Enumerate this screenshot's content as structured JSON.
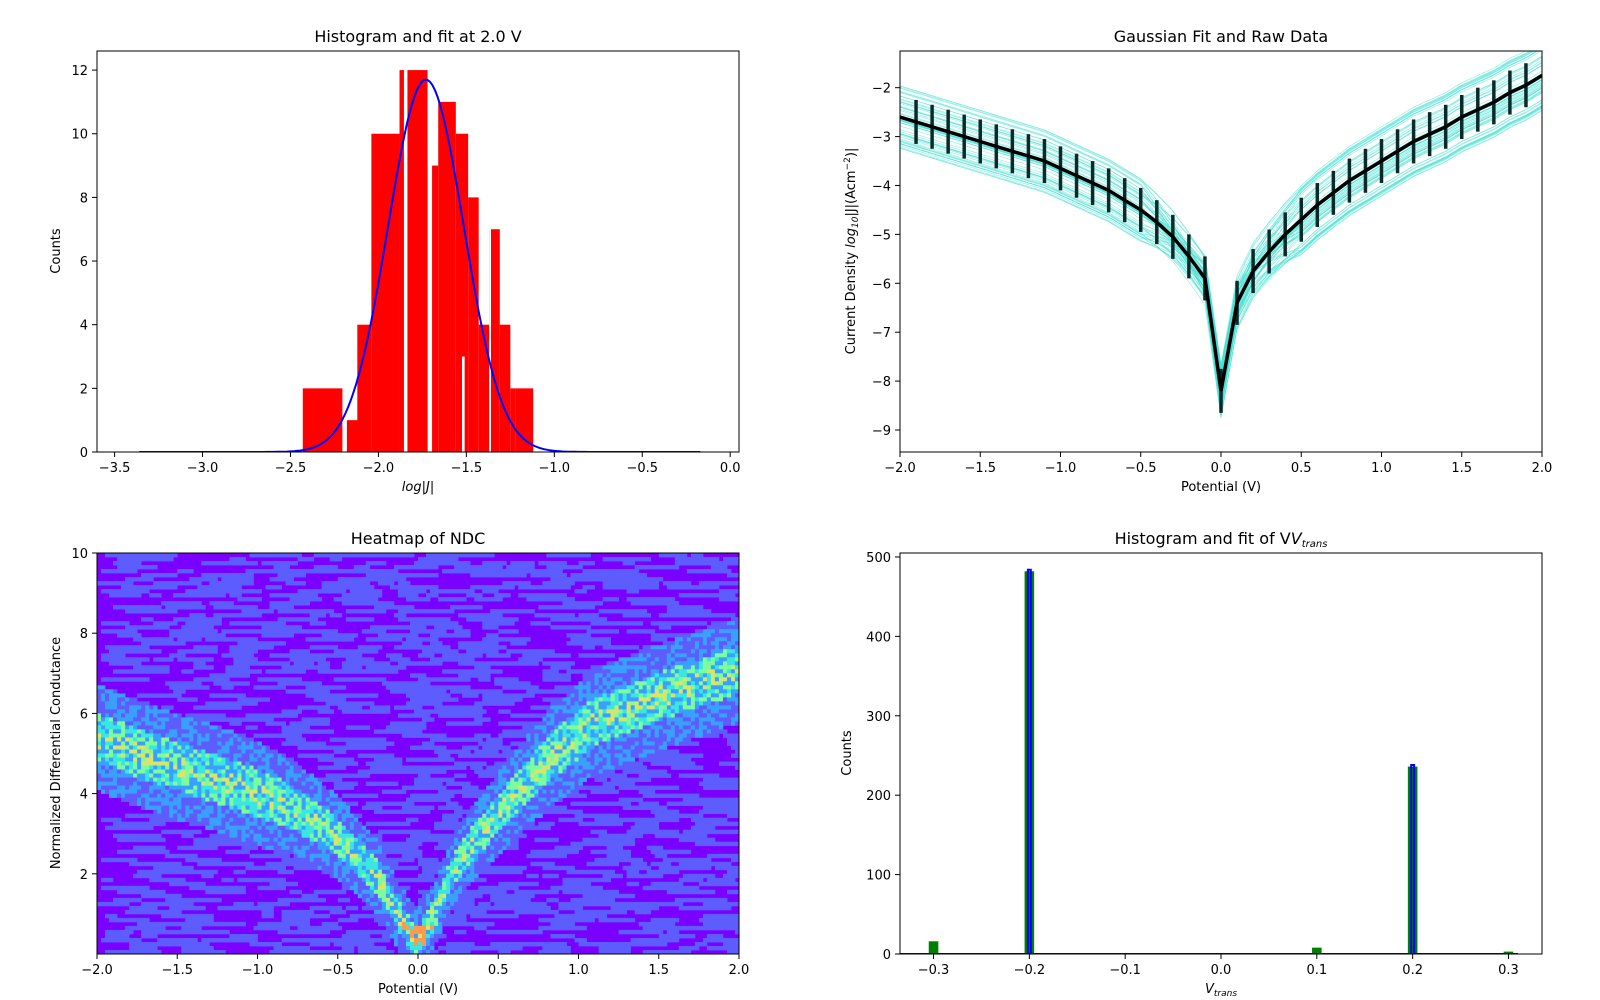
{
  "chart_data": [
    {
      "type": "bar",
      "title": "Histogram and fit at 2.0 V",
      "xlabel": "log|J|",
      "ylabel": "Counts",
      "xlim": [
        -3.6,
        0.05
      ],
      "ylim": [
        0,
        12.6
      ],
      "xticks": [
        -3.5,
        -3.0,
        -2.5,
        -2.0,
        -1.5,
        -1.0,
        -0.5,
        0.0
      ],
      "xticklabels": [
        "−3.5",
        "−3.0",
        "−2.5",
        "−2.0",
        "−1.5",
        "−1.0",
        "−0.5",
        "0.0"
      ],
      "yticks": [
        0,
        2,
        4,
        6,
        8,
        10,
        12
      ],
      "yticklabels": [
        "0",
        "2",
        "4",
        "6",
        "8",
        "10",
        "12"
      ],
      "bar_color": "#ff0000",
      "fit_color": "#0000ff",
      "bars": [
        {
          "x0": -2.43,
          "x1": -2.2,
          "count": 2
        },
        {
          "x0": -2.18,
          "x1": -2.11,
          "count": 1
        },
        {
          "x0": -2.12,
          "x1": -2.04,
          "count": 4
        },
        {
          "x0": -2.04,
          "x1": -1.88,
          "count": 10
        },
        {
          "x0": -1.88,
          "x1": -1.72,
          "count": 12
        },
        {
          "x0": -1.85,
          "x1": -1.83,
          "count": 9
        },
        {
          "x0": -1.72,
          "x1": -1.66,
          "count": 9
        },
        {
          "x0": -1.66,
          "x1": -1.56,
          "count": 11
        },
        {
          "x0": -1.56,
          "x1": -1.49,
          "count": 10
        },
        {
          "x0": -1.49,
          "x1": -1.43,
          "count": 8
        },
        {
          "x0": -1.43,
          "x1": -1.37,
          "count": 4
        },
        {
          "x0": -1.37,
          "x1": -1.31,
          "count": 7
        },
        {
          "x0": -1.31,
          "x1": -1.25,
          "count": 4
        },
        {
          "x0": -1.25,
          "x1": -1.22,
          "count": 2
        },
        {
          "x0": -1.22,
          "x1": -1.12,
          "count": 2
        }
      ],
      "fit": {
        "amplitude": 11.7,
        "mean": -1.73,
        "sigma": 0.215,
        "x_range": [
          -3.36,
          -0.17
        ]
      }
    },
    {
      "type": "line",
      "title": "Gaussian Fit and Raw Data",
      "xlabel": "Potential (V)",
      "ylabel": "Current Density log10|J|(Acm−2)|",
      "xlim": [
        -2.0,
        2.0
      ],
      "ylim": [
        -9.45,
        -1.25
      ],
      "xticks": [
        -2.0,
        -1.5,
        -1.0,
        -0.5,
        0.0,
        0.5,
        1.0,
        1.5,
        2.0
      ],
      "xticklabels": [
        "−2.0",
        "−1.5",
        "−1.0",
        "−0.5",
        "0.0",
        "0.5",
        "1.0",
        "1.5",
        "2.0"
      ],
      "yticks": [
        -9,
        -8,
        -7,
        -6,
        -5,
        -4,
        -3,
        -2
      ],
      "yticklabels": [
        "−9",
        "−8",
        "−7",
        "−6",
        "−5",
        "−4",
        "−3",
        "−2"
      ],
      "raw_color": "#40e0d0",
      "fit_color": "#000000",
      "x": [
        -2.0,
        -1.9,
        -1.8,
        -1.7,
        -1.6,
        -1.5,
        -1.4,
        -1.3,
        -1.2,
        -1.1,
        -1.0,
        -0.9,
        -0.8,
        -0.7,
        -0.6,
        -0.5,
        -0.4,
        -0.3,
        -0.2,
        -0.1,
        0.0,
        0.1,
        0.2,
        0.3,
        0.4,
        0.5,
        0.6,
        0.7,
        0.8,
        0.9,
        1.0,
        1.1,
        1.2,
        1.3,
        1.4,
        1.5,
        1.6,
        1.7,
        1.8,
        1.9,
        2.0
      ],
      "y": [
        -2.6,
        -2.7,
        -2.8,
        -2.9,
        -3.0,
        -3.1,
        -3.2,
        -3.3,
        -3.4,
        -3.5,
        -3.65,
        -3.8,
        -3.95,
        -4.1,
        -4.3,
        -4.5,
        -4.75,
        -5.05,
        -5.45,
        -5.9,
        -8.2,
        -6.4,
        -5.75,
        -5.35,
        -5.0,
        -4.7,
        -4.4,
        -4.15,
        -3.9,
        -3.7,
        -3.5,
        -3.3,
        -3.1,
        -2.95,
        -2.8,
        -2.6,
        -2.45,
        -2.3,
        -2.1,
        -1.95,
        -1.75
      ],
      "errorbars_x": [
        -1.9,
        -1.8,
        -1.7,
        -1.6,
        -1.5,
        -1.4,
        -1.3,
        -1.2,
        -1.1,
        -1.0,
        -0.9,
        -0.8,
        -0.7,
        -0.6,
        -0.5,
        -0.4,
        -0.3,
        -0.2,
        -0.1,
        0.0,
        0.1,
        0.2,
        0.3,
        0.4,
        0.5,
        0.6,
        0.7,
        0.8,
        0.9,
        1.0,
        1.1,
        1.2,
        1.3,
        1.4,
        1.5,
        1.6,
        1.7,
        1.8,
        1.9
      ],
      "errorbar_halfwidth": 0.45
    },
    {
      "type": "heatmap",
      "title": "Heatmap of NDC",
      "xlabel": "Potential (V)",
      "ylabel": "Normalized Differential Condutance",
      "xlim": [
        -2.0,
        2.0
      ],
      "ylim": [
        0,
        10
      ],
      "xticks": [
        -2.0,
        -1.5,
        -1.0,
        -0.5,
        0.0,
        0.5,
        1.0,
        1.5,
        2.0
      ],
      "xticklabels": [
        "−2.0",
        "−1.5",
        "−1.0",
        "−0.5",
        "0.0",
        "0.5",
        "1.0",
        "1.5",
        "2.0"
      ],
      "yticks": [
        2,
        4,
        6,
        8,
        10
      ],
      "yticklabels": [
        "2",
        "4",
        "6",
        "8",
        "10"
      ],
      "colormap": [
        "#7a00ff",
        "#5d5dff",
        "#3aa0ff",
        "#3ce6e0",
        "#7dfc9e",
        "#d7e66a",
        "#ff9a4a"
      ],
      "ridge": [
        {
          "v": -2.0,
          "ndc": 5.4
        },
        {
          "v": -1.6,
          "ndc": 4.8
        },
        {
          "v": -1.2,
          "ndc": 4.3
        },
        {
          "v": -0.8,
          "ndc": 3.7
        },
        {
          "v": -0.5,
          "ndc": 2.9
        },
        {
          "v": -0.25,
          "ndc": 1.9
        },
        {
          "v": -0.1,
          "ndc": 0.8
        },
        {
          "v": 0.0,
          "ndc": 0.3
        },
        {
          "v": 0.1,
          "ndc": 1.0
        },
        {
          "v": 0.25,
          "ndc": 2.3
        },
        {
          "v": 0.5,
          "ndc": 3.5
        },
        {
          "v": 0.8,
          "ndc": 4.8
        },
        {
          "v": 1.1,
          "ndc": 5.8
        },
        {
          "v": 1.5,
          "ndc": 6.4
        },
        {
          "v": 2.0,
          "ndc": 7.1
        }
      ]
    },
    {
      "type": "bar",
      "title": "Histogram and fit of V",
      "title_subscript": "trans",
      "xlabel": "V",
      "xlabel_subscript": "trans",
      "ylabel": "Counts",
      "xlim": [
        -0.335,
        0.335
      ],
      "ylim": [
        0,
        505
      ],
      "xticks": [
        -0.3,
        -0.2,
        -0.1,
        0.0,
        0.1,
        0.2,
        0.3
      ],
      "xticklabels": [
        "−0.3",
        "−0.2",
        "−0.1",
        "0.0",
        "0.1",
        "0.2",
        "0.3"
      ],
      "yticks": [
        0,
        100,
        200,
        300,
        400,
        500
      ],
      "yticklabels": [
        "0",
        "100",
        "200",
        "300",
        "400",
        "500"
      ],
      "bar_color": "#008000",
      "fit_color": "#0000ff",
      "bars": [
        {
          "x": -0.3,
          "count": 16
        },
        {
          "x": -0.2,
          "count": 482
        },
        {
          "x": 0.1,
          "count": 8
        },
        {
          "x": 0.2,
          "count": 236
        },
        {
          "x": 0.3,
          "count": 3
        }
      ],
      "bar_width": 0.01,
      "fit_peaks": [
        {
          "x": -0.2,
          "height": 484
        },
        {
          "x": 0.2,
          "height": 238
        }
      ]
    }
  ]
}
